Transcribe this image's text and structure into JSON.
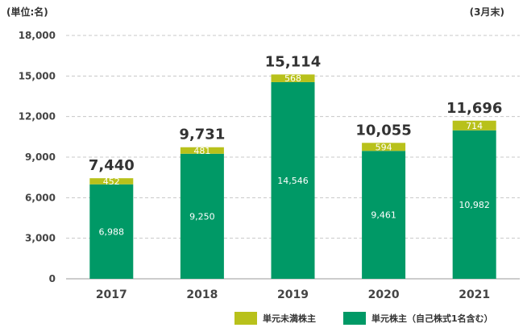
{
  "header": {
    "unit_label": "(単位:名)",
    "period_label": "(3月末)"
  },
  "chart_data": {
    "type": "bar",
    "stacked": true,
    "categories": [
      "2017",
      "2018",
      "2019",
      "2020",
      "2021"
    ],
    "series": [
      {
        "name": "単元株主（自己株式1名含む）",
        "values": [
          6988,
          9250,
          14546,
          9461,
          10982
        ],
        "value_labels": [
          "6,988",
          "9,250",
          "14,546",
          "9,461",
          "10,982"
        ],
        "color": "#009966"
      },
      {
        "name": "単元未満株主",
        "values": [
          452,
          481,
          568,
          594,
          714
        ],
        "value_labels": [
          "452",
          "481",
          "568",
          "594",
          "714"
        ],
        "color": "#b8c11b"
      }
    ],
    "totals": [
      7440,
      9731,
      15114,
      10055,
      11696
    ],
    "total_labels": [
      "7,440",
      "9,731",
      "15,114",
      "10,055",
      "11,696"
    ],
    "y_ticks": [
      "0",
      "3,000",
      "6,000",
      "9,000",
      "12,000",
      "15,000",
      "18,000"
    ],
    "ylim": [
      0,
      18000
    ],
    "y_step": 3000,
    "grid": true,
    "legend_position": "bottom-right"
  }
}
